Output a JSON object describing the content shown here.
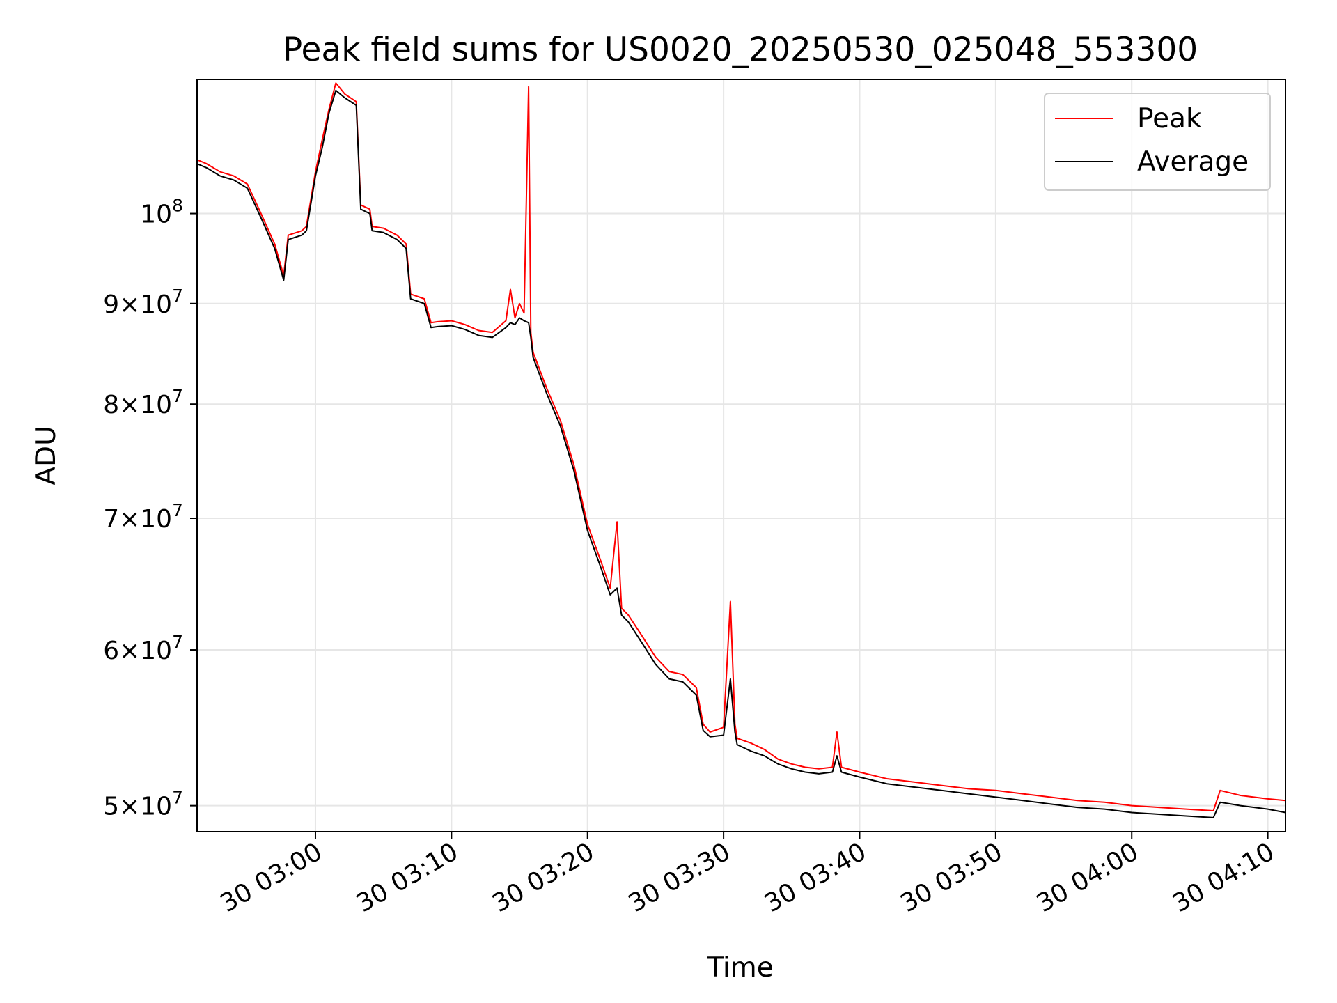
{
  "chart_data": {
    "type": "line",
    "title": "Peak field sums for US0020_20250530_025048_553300",
    "xlabel": "Time",
    "ylabel": "ADU",
    "y_scale": "log",
    "xlim": [
      "2025-05-30 02:51:18",
      "2025-05-30 04:11:18"
    ],
    "ylim": [
      48500000,
      117000000
    ],
    "grid": true,
    "legend_position": "top-right",
    "x_ticks": [
      {
        "value": "2025-05-30 03:00",
        "label": "30 03:00"
      },
      {
        "value": "2025-05-30 03:10",
        "label": "30 03:10"
      },
      {
        "value": "2025-05-30 03:20",
        "label": "30 03:20"
      },
      {
        "value": "2025-05-30 03:30",
        "label": "30 03:30"
      },
      {
        "value": "2025-05-30 03:40",
        "label": "30 03:40"
      },
      {
        "value": "2025-05-30 03:50",
        "label": "30 03:50"
      },
      {
        "value": "2025-05-30 04:00",
        "label": "30 04:00"
      },
      {
        "value": "2025-05-30 04:10",
        "label": "30 04:10"
      }
    ],
    "y_ticks": [
      {
        "value": 50000000,
        "mantissa": "5",
        "exponent": "7"
      },
      {
        "value": 60000000,
        "mantissa": "6",
        "exponent": "7"
      },
      {
        "value": 70000000,
        "mantissa": "7",
        "exponent": "7"
      },
      {
        "value": 80000000,
        "mantissa": "8",
        "exponent": "7"
      },
      {
        "value": 90000000,
        "mantissa": "9",
        "exponent": "7"
      },
      {
        "value": 100000000,
        "mantissa": "",
        "exponent": "8"
      }
    ],
    "series": [
      {
        "name": "Peak",
        "color": "#ff0000",
        "points": [
          [
            "2025-05-30 02:51:18",
            106500000
          ],
          [
            "2025-05-30 02:52:00",
            106000000
          ],
          [
            "2025-05-30 02:53:00",
            105000000
          ],
          [
            "2025-05-30 02:54:00",
            104500000
          ],
          [
            "2025-05-30 02:55:00",
            103500000
          ],
          [
            "2025-05-30 02:56:00",
            100000000
          ],
          [
            "2025-05-30 02:57:00",
            96500000
          ],
          [
            "2025-05-30 02:57:40",
            93000000
          ],
          [
            "2025-05-30 02:58:00",
            97500000
          ],
          [
            "2025-05-30 02:59:00",
            98000000
          ],
          [
            "2025-05-30 02:59:20",
            98500000
          ],
          [
            "2025-05-30 03:00:00",
            105000000
          ],
          [
            "2025-05-30 03:00:30",
            109000000
          ],
          [
            "2025-05-30 03:01:00",
            113000000
          ],
          [
            "2025-05-30 03:01:30",
            116500000
          ],
          [
            "2025-05-30 03:02:10",
            115000000
          ],
          [
            "2025-05-30 03:03:00",
            114000000
          ],
          [
            "2025-05-30 03:03:20",
            101000000
          ],
          [
            "2025-05-30 03:04:00",
            100500000
          ],
          [
            "2025-05-30 03:04:10",
            98500000
          ],
          [
            "2025-05-30 03:05:00",
            98300000
          ],
          [
            "2025-05-30 03:06:00",
            97500000
          ],
          [
            "2025-05-30 03:06:40",
            96500000
          ],
          [
            "2025-05-30 03:07:00",
            91000000
          ],
          [
            "2025-05-30 03:08:00",
            90500000
          ],
          [
            "2025-05-30 03:08:30",
            88000000
          ],
          [
            "2025-05-30 03:09:00",
            88100000
          ],
          [
            "2025-05-30 03:10:00",
            88200000
          ],
          [
            "2025-05-30 03:11:00",
            87800000
          ],
          [
            "2025-05-30 03:12:00",
            87200000
          ],
          [
            "2025-05-30 03:13:00",
            87000000
          ],
          [
            "2025-05-30 03:14:00",
            88200000
          ],
          [
            "2025-05-30 03:14:20",
            91500000
          ],
          [
            "2025-05-30 03:14:40",
            88500000
          ],
          [
            "2025-05-30 03:15:00",
            90000000
          ],
          [
            "2025-05-30 03:15:20",
            89000000
          ],
          [
            "2025-05-30 03:15:40",
            116000000
          ],
          [
            "2025-05-30 03:15:50",
            87000000
          ],
          [
            "2025-05-30 03:16:00",
            85000000
          ],
          [
            "2025-05-30 03:17:00",
            81500000
          ],
          [
            "2025-05-30 03:18:00",
            78500000
          ],
          [
            "2025-05-30 03:19:00",
            74500000
          ],
          [
            "2025-05-30 03:20:00",
            69500000
          ],
          [
            "2025-05-30 03:21:00",
            66500000
          ],
          [
            "2025-05-30 03:21:40",
            64500000
          ],
          [
            "2025-05-30 03:22:10",
            69700000
          ],
          [
            "2025-05-30 03:22:30",
            63000000
          ],
          [
            "2025-05-30 03:23:00",
            62500000
          ],
          [
            "2025-05-30 03:24:00",
            61000000
          ],
          [
            "2025-05-30 03:25:00",
            59500000
          ],
          [
            "2025-05-30 03:26:00",
            58500000
          ],
          [
            "2025-05-30 03:27:00",
            58300000
          ],
          [
            "2025-05-30 03:28:00",
            57400000
          ],
          [
            "2025-05-30 03:28:30",
            55000000
          ],
          [
            "2025-05-30 03:29:00",
            54500000
          ],
          [
            "2025-05-30 03:30:00",
            54800000
          ],
          [
            "2025-05-30 03:30:30",
            63500000
          ],
          [
            "2025-05-30 03:30:50",
            55000000
          ],
          [
            "2025-05-30 03:31:00",
            54100000
          ],
          [
            "2025-05-30 03:32:00",
            53800000
          ],
          [
            "2025-05-30 03:33:00",
            53400000
          ],
          [
            "2025-05-30 03:34:00",
            52800000
          ],
          [
            "2025-05-30 03:35:00",
            52500000
          ],
          [
            "2025-05-30 03:36:00",
            52300000
          ],
          [
            "2025-05-30 03:37:00",
            52200000
          ],
          [
            "2025-05-30 03:38:00",
            52300000
          ],
          [
            "2025-05-30 03:38:20",
            54500000
          ],
          [
            "2025-05-30 03:38:40",
            52300000
          ],
          [
            "2025-05-30 03:40:00",
            52000000
          ],
          [
            "2025-05-30 03:42:00",
            51600000
          ],
          [
            "2025-05-30 03:44:00",
            51400000
          ],
          [
            "2025-05-30 03:46:00",
            51200000
          ],
          [
            "2025-05-30 03:48:00",
            51000000
          ],
          [
            "2025-05-30 03:50:00",
            50900000
          ],
          [
            "2025-05-30 03:52:00",
            50700000
          ],
          [
            "2025-05-30 03:54:00",
            50500000
          ],
          [
            "2025-05-30 03:56:00",
            50300000
          ],
          [
            "2025-05-30 03:58:00",
            50200000
          ],
          [
            "2025-05-30 04:00:00",
            50000000
          ],
          [
            "2025-05-30 04:02:00",
            49900000
          ],
          [
            "2025-05-30 04:04:00",
            49800000
          ],
          [
            "2025-05-30 04:06:00",
            49700000
          ],
          [
            "2025-05-30 04:06:30",
            50900000
          ],
          [
            "2025-05-30 04:08:00",
            50600000
          ],
          [
            "2025-05-30 04:10:00",
            50400000
          ],
          [
            "2025-05-30 04:11:18",
            50300000
          ]
        ]
      },
      {
        "name": "Average",
        "color": "#000000",
        "points": [
          [
            "2025-05-30 02:51:18",
            106000000
          ],
          [
            "2025-05-30 02:52:00",
            105500000
          ],
          [
            "2025-05-30 02:53:00",
            104500000
          ],
          [
            "2025-05-30 02:54:00",
            104000000
          ],
          [
            "2025-05-30 02:55:00",
            103000000
          ],
          [
            "2025-05-30 02:56:00",
            99500000
          ],
          [
            "2025-05-30 02:57:00",
            96000000
          ],
          [
            "2025-05-30 02:57:40",
            92500000
          ],
          [
            "2025-05-30 02:58:00",
            97000000
          ],
          [
            "2025-05-30 02:59:00",
            97500000
          ],
          [
            "2025-05-30 02:59:20",
            98000000
          ],
          [
            "2025-05-30 03:00:00",
            104500000
          ],
          [
            "2025-05-30 03:00:30",
            108000000
          ],
          [
            "2025-05-30 03:01:00",
            112500000
          ],
          [
            "2025-05-30 03:01:30",
            115500000
          ],
          [
            "2025-05-30 03:02:10",
            114500000
          ],
          [
            "2025-05-30 03:03:00",
            113500000
          ],
          [
            "2025-05-30 03:03:20",
            100500000
          ],
          [
            "2025-05-30 03:04:00",
            100000000
          ],
          [
            "2025-05-30 03:04:10",
            98000000
          ],
          [
            "2025-05-30 03:05:00",
            97800000
          ],
          [
            "2025-05-30 03:06:00",
            97000000
          ],
          [
            "2025-05-30 03:06:40",
            96000000
          ],
          [
            "2025-05-30 03:07:00",
            90500000
          ],
          [
            "2025-05-30 03:08:00",
            90000000
          ],
          [
            "2025-05-30 03:08:30",
            87500000
          ],
          [
            "2025-05-30 03:09:00",
            87600000
          ],
          [
            "2025-05-30 03:10:00",
            87700000
          ],
          [
            "2025-05-30 03:11:00",
            87300000
          ],
          [
            "2025-05-30 03:12:00",
            86700000
          ],
          [
            "2025-05-30 03:13:00",
            86500000
          ],
          [
            "2025-05-30 03:14:00",
            87500000
          ],
          [
            "2025-05-30 03:14:20",
            88000000
          ],
          [
            "2025-05-30 03:14:40",
            87800000
          ],
          [
            "2025-05-30 03:15:00",
            88500000
          ],
          [
            "2025-05-30 03:15:20",
            88200000
          ],
          [
            "2025-05-30 03:15:40",
            88000000
          ],
          [
            "2025-05-30 03:15:50",
            86500000
          ],
          [
            "2025-05-30 03:16:00",
            84500000
          ],
          [
            "2025-05-30 03:17:00",
            81000000
          ],
          [
            "2025-05-30 03:18:00",
            78000000
          ],
          [
            "2025-05-30 03:19:00",
            74000000
          ],
          [
            "2025-05-30 03:20:00",
            69000000
          ],
          [
            "2025-05-30 03:21:00",
            66000000
          ],
          [
            "2025-05-30 03:21:40",
            64000000
          ],
          [
            "2025-05-30 03:22:10",
            64500000
          ],
          [
            "2025-05-30 03:22:30",
            62500000
          ],
          [
            "2025-05-30 03:23:00",
            62000000
          ],
          [
            "2025-05-30 03:24:00",
            60500000
          ],
          [
            "2025-05-30 03:25:00",
            59000000
          ],
          [
            "2025-05-30 03:26:00",
            58000000
          ],
          [
            "2025-05-30 03:27:00",
            57800000
          ],
          [
            "2025-05-30 03:28:00",
            56900000
          ],
          [
            "2025-05-30 03:28:30",
            54600000
          ],
          [
            "2025-05-30 03:29:00",
            54200000
          ],
          [
            "2025-05-30 03:30:00",
            54300000
          ],
          [
            "2025-05-30 03:30:30",
            58000000
          ],
          [
            "2025-05-30 03:30:50",
            54500000
          ],
          [
            "2025-05-30 03:31:00",
            53700000
          ],
          [
            "2025-05-30 03:32:00",
            53300000
          ],
          [
            "2025-05-30 03:33:00",
            53000000
          ],
          [
            "2025-05-30 03:34:00",
            52500000
          ],
          [
            "2025-05-30 03:35:00",
            52200000
          ],
          [
            "2025-05-30 03:36:00",
            52000000
          ],
          [
            "2025-05-30 03:37:00",
            51900000
          ],
          [
            "2025-05-30 03:38:00",
            52000000
          ],
          [
            "2025-05-30 03:38:20",
            53000000
          ],
          [
            "2025-05-30 03:38:40",
            52000000
          ],
          [
            "2025-05-30 03:40:00",
            51700000
          ],
          [
            "2025-05-30 03:42:00",
            51300000
          ],
          [
            "2025-05-30 03:44:00",
            51100000
          ],
          [
            "2025-05-30 03:46:00",
            50900000
          ],
          [
            "2025-05-30 03:48:00",
            50700000
          ],
          [
            "2025-05-30 03:50:00",
            50500000
          ],
          [
            "2025-05-30 03:52:00",
            50300000
          ],
          [
            "2025-05-30 03:54:00",
            50100000
          ],
          [
            "2025-05-30 03:56:00",
            49900000
          ],
          [
            "2025-05-30 03:58:00",
            49800000
          ],
          [
            "2025-05-30 04:00:00",
            49600000
          ],
          [
            "2025-05-30 04:02:00",
            49500000
          ],
          [
            "2025-05-30 04:04:00",
            49400000
          ],
          [
            "2025-05-30 04:06:00",
            49300000
          ],
          [
            "2025-05-30 04:06:30",
            50200000
          ],
          [
            "2025-05-30 04:08:00",
            50000000
          ],
          [
            "2025-05-30 04:10:00",
            49800000
          ],
          [
            "2025-05-30 04:11:18",
            49600000
          ]
        ]
      }
    ]
  }
}
